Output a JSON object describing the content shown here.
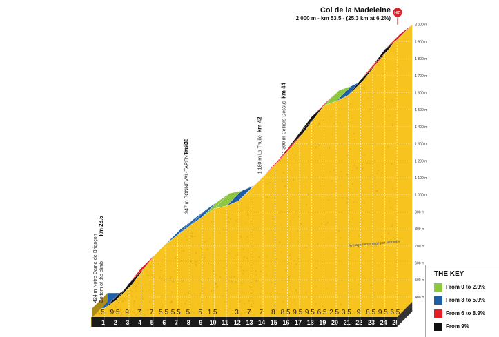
{
  "chart_data": {
    "type": "area",
    "title": "Col de la Madeleine",
    "subtitle": "2 000 m - km 53.5 - (25.3 km at 6.2%)",
    "badge": "HC",
    "y_ticks": [
      400,
      500,
      600,
      700,
      800,
      900,
      1000,
      1100,
      1200,
      1300,
      1400,
      1500,
      1600,
      1700,
      1800,
      1900,
      2000
    ],
    "y_tick_labels": [
      "400 m",
      "500 m",
      "600 m",
      "700 m",
      "800 m",
      "900 m",
      "1 000 m",
      "1 100 m",
      "1 200 m",
      "1 300 m",
      "1 400 m",
      "1 500 m",
      "1 600 m",
      "1 700 m",
      "1 800 m",
      "1 900 m",
      "2 000 m"
    ],
    "x_labels": [
      "1",
      "2",
      "3",
      "4",
      "5",
      "6",
      "7",
      "8",
      "9",
      "10",
      "11",
      "12",
      "13",
      "14",
      "15",
      "16",
      "17",
      "18",
      "19",
      "20",
      "21",
      "22",
      "23",
      "24",
      "25"
    ],
    "gradients": [
      "5",
      "9.5",
      "9",
      "7",
      "7",
      "5.5",
      "5.5",
      "5",
      "5",
      "1.5",
      "",
      "3",
      "7",
      "7",
      "8",
      "8.5",
      "9.5",
      "9.5",
      "6.5",
      "2.5",
      "3.5",
      "9",
      "8.5",
      "9.5",
      "6.5"
    ],
    "gradient_labels": [
      "5",
      "9.5",
      "9",
      "7",
      "7",
      "5.5",
      "5.5",
      "5",
      "5",
      "1.5",
      "3",
      "7",
      "7",
      "8",
      "8.5",
      "9.5",
      "9.5",
      "6.5",
      "2.5",
      "3.5",
      "9",
      "8.5",
      "9.5",
      "6.5"
    ],
    "elevation_profile": [
      424,
      474,
      569,
      659,
      729,
      799,
      854,
      909,
      959,
      1009,
      1024,
      1054,
      1124,
      1194,
      1274,
      1359,
      1454,
      1549,
      1614,
      1639,
      1674,
      1764,
      1849,
      1944,
      2000
    ],
    "locations": [
      {
        "text": "424 m Notre-Dame-de-Briançon",
        "line2": "Bottom of the climb",
        "km": "km 28.5",
        "x": 0,
        "elev": 424
      },
      {
        "text": "947 m BONNEVAL-TARENTAISE",
        "km": "km 36",
        "x": 7.5,
        "elev": 947
      },
      {
        "text": "1 180 m La Thuile",
        "km": "km 42",
        "x": 13.5,
        "elev": 1180
      },
      {
        "text": "1 300 m Celliers-Dessus",
        "km": "km 44",
        "x": 15.5,
        "elev": 1300
      }
    ],
    "average_note": "Average percentage per kilometre",
    "categories": [
      "0-2.9",
      "3-5.9",
      "6-8.9",
      "9+"
    ]
  },
  "colors": {
    "green": "#8dc63f",
    "blue": "#1f5fa8",
    "red": "#e31e24",
    "black": "#111111",
    "profile": "#f7c41f",
    "grid": "#ffffff"
  },
  "legend": {
    "title": "THE KEY",
    "items": [
      {
        "label": "From 0 to 2.9%",
        "color": "#8dc63f"
      },
      {
        "label": "From 3 to 5.9%",
        "color": "#1f5fa8"
      },
      {
        "label": "From 6 to 8.9%",
        "color": "#e31e24"
      },
      {
        "label": "From 9%",
        "color": "#111111"
      }
    ]
  }
}
